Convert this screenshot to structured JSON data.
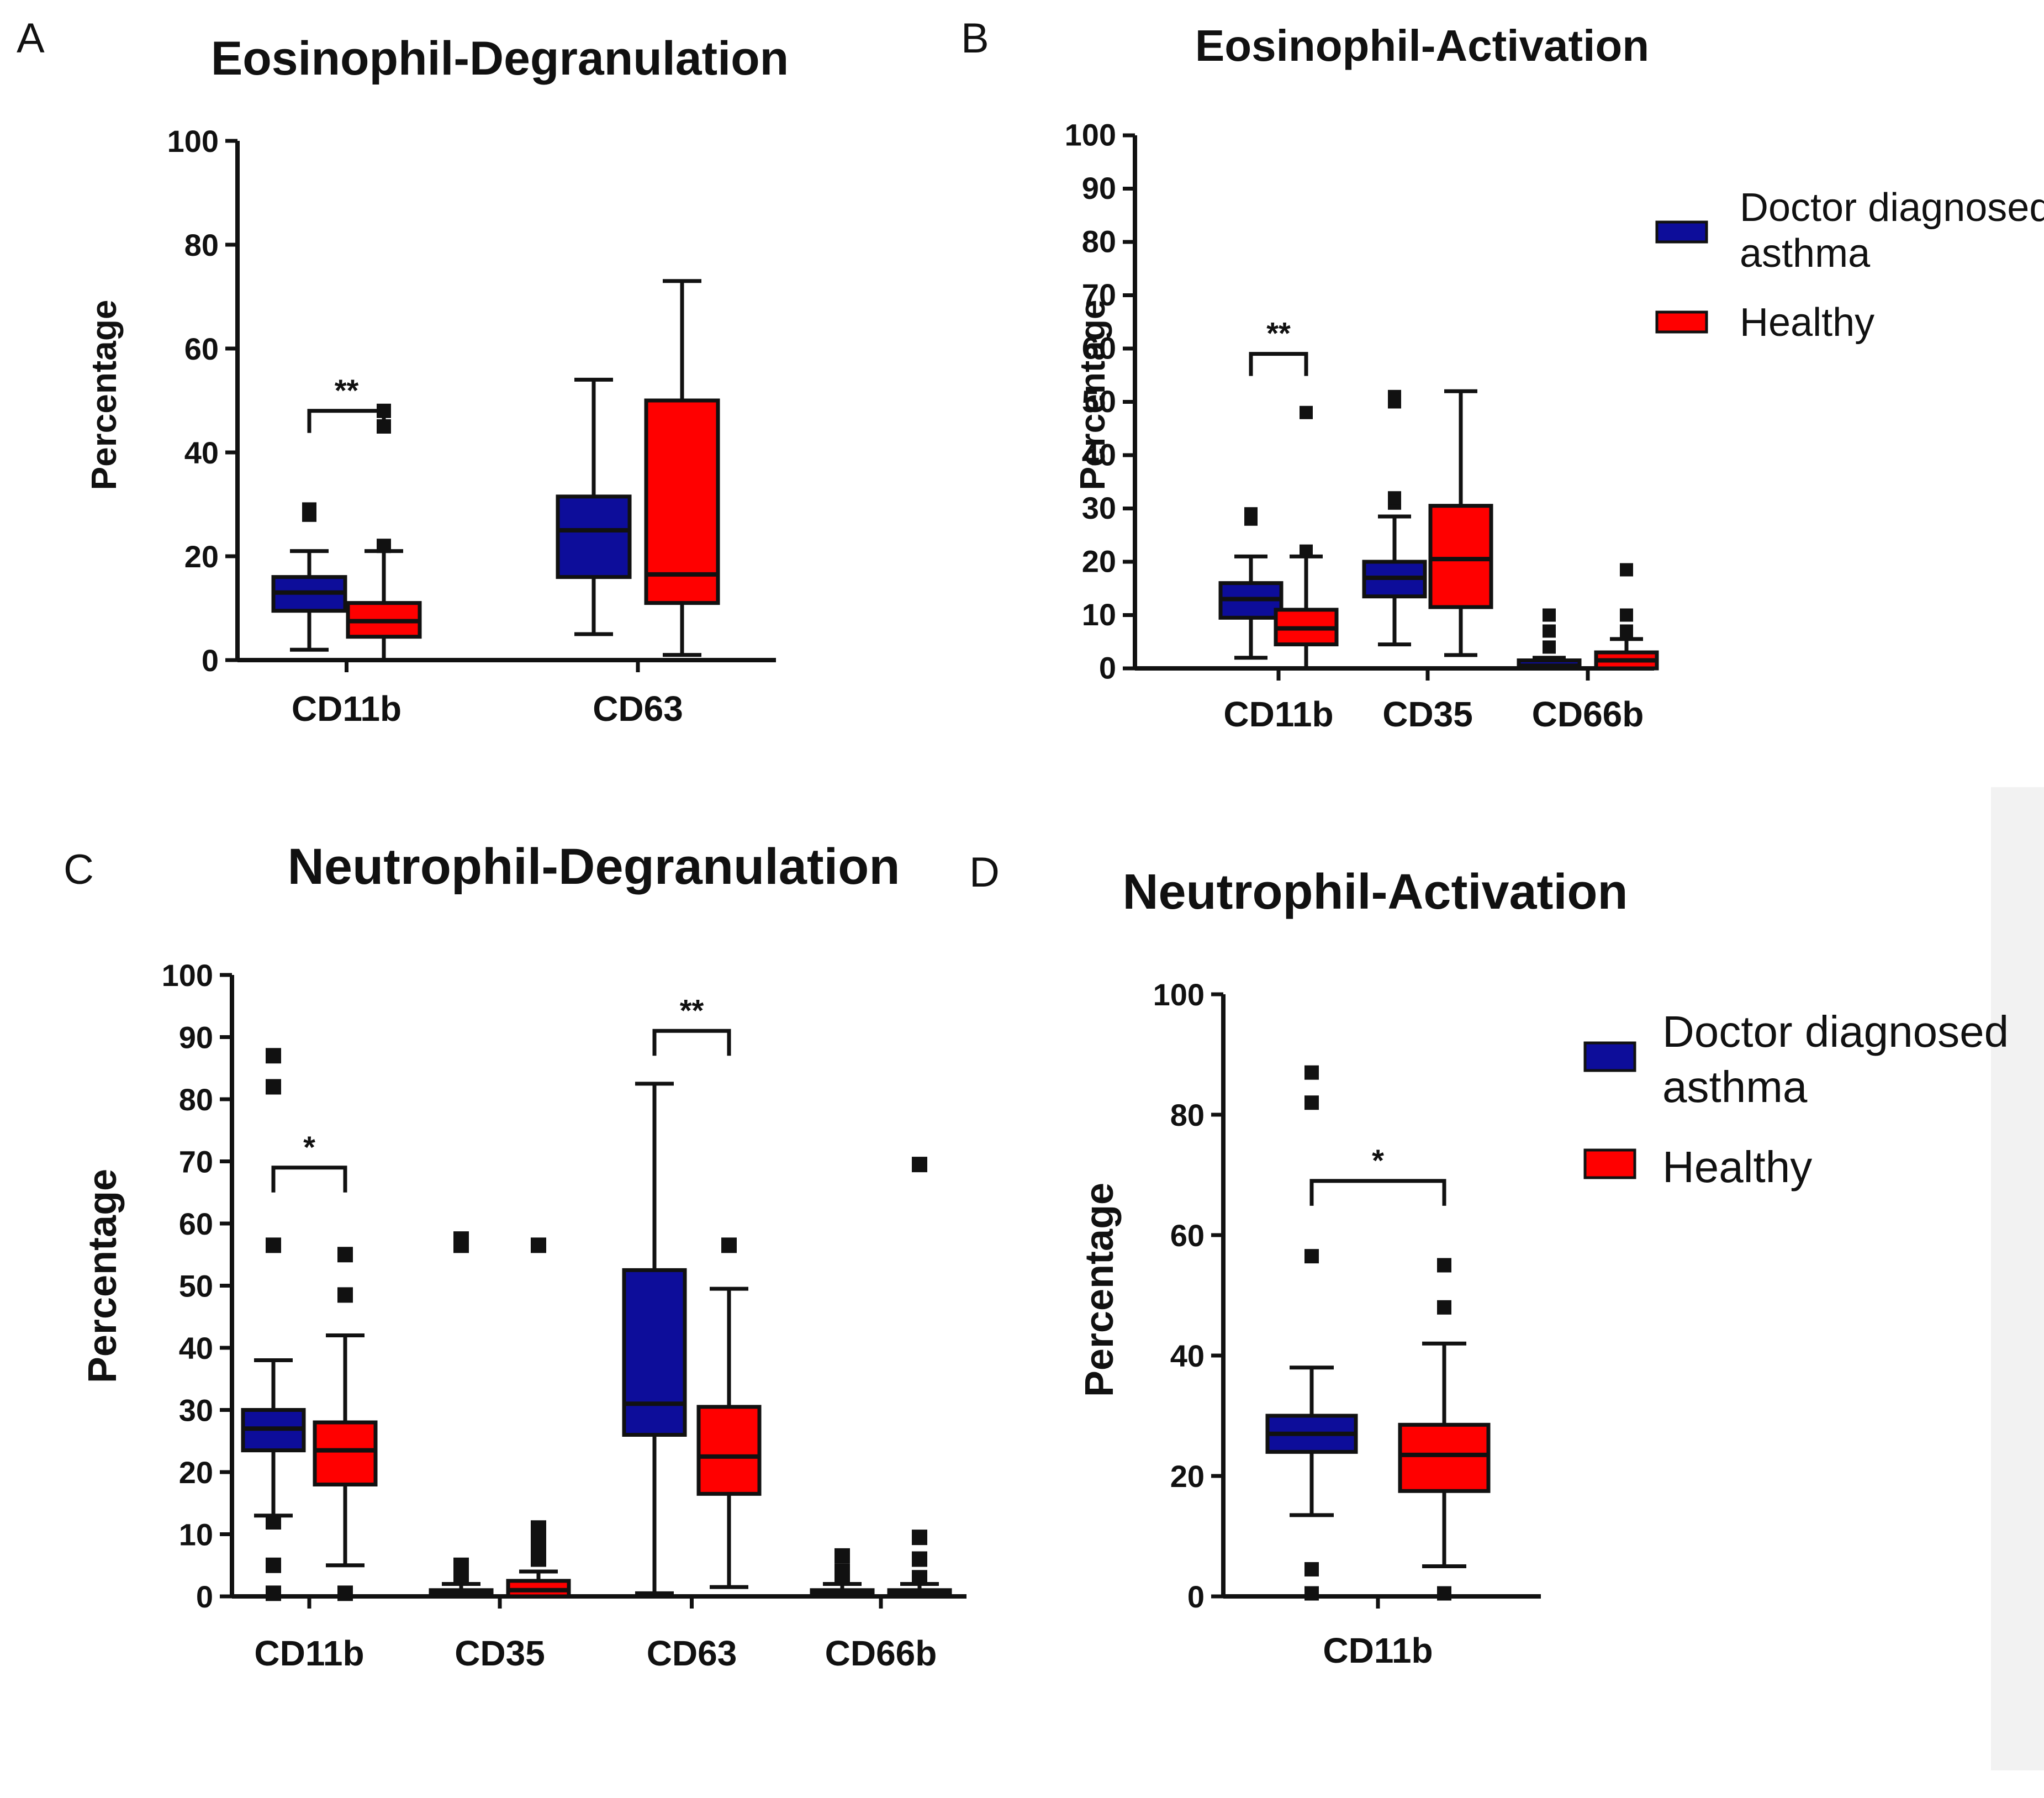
{
  "colors": {
    "asthma": "#0d0d9a",
    "healthy": "#ff0000",
    "ink": "#111111",
    "sidebar": "#f2f2f2"
  },
  "legend": {
    "asthma_line1": "Doctor diagnosed",
    "asthma_line2": "asthma",
    "healthy": "Healthy"
  },
  "chart_data": [
    {
      "id": "A",
      "letter": "A",
      "type": "boxplot",
      "title": "Eosinophil-Degranulation",
      "ylabel": "Percentage",
      "ylim": [
        0,
        100
      ],
      "yticks": [
        0,
        20,
        40,
        60,
        80,
        100
      ],
      "categories": [
        "CD11b",
        "CD63"
      ],
      "series": [
        {
          "name": "Doctor diagnosed asthma",
          "color": "asthma",
          "boxes": [
            {
              "min": 2,
              "q1": 9.5,
              "median": 13,
              "q3": 16,
              "max": 21,
              "outliers": [
                28,
                29
              ]
            },
            {
              "min": 5,
              "q1": 16,
              "median": 25,
              "q3": 31.5,
              "max": 54,
              "outliers": []
            }
          ]
        },
        {
          "name": "Healthy",
          "color": "healthy",
          "boxes": [
            {
              "min": 0,
              "q1": 4.5,
              "median": 7.5,
              "q3": 11,
              "max": 21,
              "outliers": [
                22,
                45,
                48
              ]
            },
            {
              "min": 1,
              "q1": 11,
              "median": 16.5,
              "q3": 50,
              "max": 73,
              "outliers": []
            }
          ]
        }
      ],
      "significance": [
        {
          "category": "CD11b",
          "label": "**",
          "y": 48
        }
      ]
    },
    {
      "id": "B",
      "letter": "B",
      "type": "boxplot",
      "title": "Eosinophil-Activation",
      "ylabel": "Percentage",
      "ylim": [
        0,
        100
      ],
      "yticks": [
        0,
        10,
        20,
        30,
        40,
        50,
        60,
        70,
        80,
        90,
        100
      ],
      "categories": [
        "CD11b",
        "CD35",
        "CD66b"
      ],
      "series": [
        {
          "name": "Doctor diagnosed asthma",
          "color": "asthma",
          "boxes": [
            {
              "min": 2,
              "q1": 9.5,
              "median": 13,
              "q3": 16,
              "max": 21,
              "outliers": [
                28,
                29
              ]
            },
            {
              "min": 4.5,
              "q1": 13.5,
              "median": 17,
              "q3": 20,
              "max": 28.5,
              "outliers": [
                31,
                32,
                50,
                51
              ]
            },
            {
              "min": 0,
              "q1": 0,
              "median": 0.5,
              "q3": 1.5,
              "max": 2,
              "outliers": [
                4,
                7,
                10
              ]
            }
          ]
        },
        {
          "name": "Healthy",
          "color": "healthy",
          "boxes": [
            {
              "min": 0,
              "q1": 4.5,
              "median": 7.5,
              "q3": 11,
              "max": 21,
              "outliers": [
                22,
                48
              ]
            },
            {
              "min": 2.5,
              "q1": 11.5,
              "median": 20.5,
              "q3": 30.5,
              "max": 52,
              "outliers": []
            },
            {
              "min": 0,
              "q1": 0,
              "median": 1.5,
              "q3": 3,
              "max": 5.5,
              "outliers": [
                7,
                10,
                18.5
              ]
            }
          ]
        }
      ],
      "significance": [
        {
          "category": "CD11b",
          "label": "**",
          "y": 59
        }
      ]
    },
    {
      "id": "C",
      "letter": "C",
      "type": "boxplot",
      "title": "Neutrophil-Degranulation",
      "ylabel": "Percentage",
      "ylim": [
        0,
        100
      ],
      "yticks": [
        0,
        10,
        20,
        30,
        40,
        50,
        60,
        70,
        80,
        90,
        100
      ],
      "categories": [
        "CD11b",
        "CD35",
        "CD63",
        "CD66b"
      ],
      "series": [
        {
          "name": "Doctor diagnosed asthma",
          "color": "asthma",
          "boxes": [
            {
              "min": 13,
              "q1": 23.5,
              "median": 27,
              "q3": 30,
              "max": 38,
              "outliers": [
                0.5,
                5,
                12,
                56.5,
                82,
                87
              ]
            },
            {
              "min": 0,
              "q1": 0,
              "median": 0.5,
              "q3": 1,
              "max": 2,
              "outliers": [
                3,
                5,
                56.5,
                57.5
              ]
            },
            {
              "min": 0.5,
              "q1": 26,
              "median": 31,
              "q3": 52.5,
              "max": 82.5,
              "outliers": []
            },
            {
              "min": 0,
              "q1": 0,
              "median": 0.5,
              "q3": 1,
              "max": 2,
              "outliers": [
                3,
                4,
                6.5
              ]
            }
          ]
        },
        {
          "name": "Healthy",
          "color": "healthy",
          "boxes": [
            {
              "min": 5,
              "q1": 18,
              "median": 23.5,
              "q3": 28,
              "max": 42,
              "outliers": [
                0.5,
                48.5,
                55
              ]
            },
            {
              "min": 0,
              "q1": 0,
              "median": 1,
              "q3": 2.5,
              "max": 4,
              "outliers": [
                6,
                8,
                10,
                11,
                56.5
              ]
            },
            {
              "min": 1.5,
              "q1": 16.5,
              "median": 22.5,
              "q3": 30.5,
              "max": 49.5,
              "outliers": [
                56.5
              ]
            },
            {
              "min": 0,
              "q1": 0,
              "median": 0.5,
              "q3": 1,
              "max": 2,
              "outliers": [
                3,
                6,
                9.5,
                69.5
              ]
            }
          ]
        }
      ],
      "significance": [
        {
          "category": "CD11b",
          "label": "*",
          "y": 69
        },
        {
          "category": "CD63",
          "label": "**",
          "y": 91
        }
      ]
    },
    {
      "id": "D",
      "letter": "D",
      "type": "boxplot",
      "title": "Neutrophil-Activation",
      "ylabel": "Percentage",
      "ylim": [
        0,
        100
      ],
      "yticks": [
        0,
        20,
        40,
        60,
        80,
        100
      ],
      "categories": [
        "CD11b"
      ],
      "series": [
        {
          "name": "Doctor diagnosed asthma",
          "color": "asthma",
          "boxes": [
            {
              "min": 13.5,
              "q1": 24,
              "median": 27,
              "q3": 30,
              "max": 38,
              "outliers": [
                0.5,
                4.5,
                56.5,
                82,
                87
              ]
            }
          ]
        },
        {
          "name": "Healthy",
          "color": "healthy",
          "boxes": [
            {
              "min": 5,
              "q1": 17.5,
              "median": 23.5,
              "q3": 28.5,
              "max": 42,
              "outliers": [
                0.5,
                48,
                55
              ]
            }
          ]
        }
      ],
      "significance": [
        {
          "category": "CD11b",
          "label": "*",
          "y": 69
        }
      ]
    }
  ]
}
